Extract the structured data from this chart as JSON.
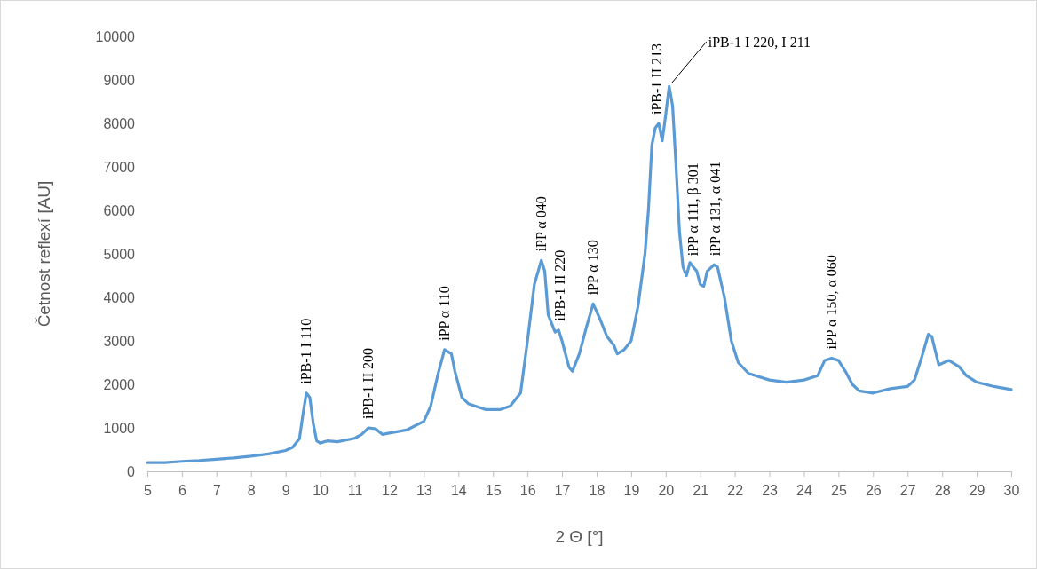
{
  "chart_data": {
    "type": "line",
    "xlabel": "2 Θ [°]",
    "ylabel": "Četnost reflexí [AU]",
    "xlim": [
      5,
      30
    ],
    "xticks": [
      5,
      6,
      7,
      8,
      9,
      10,
      11,
      12,
      13,
      14,
      15,
      16,
      17,
      18,
      19,
      20,
      21,
      22,
      23,
      24,
      25,
      26,
      27,
      28,
      29,
      30
    ],
    "ylim": [
      0,
      10000
    ],
    "yticks": [
      0,
      1000,
      2000,
      3000,
      4000,
      5000,
      6000,
      7000,
      8000,
      9000,
      10000
    ],
    "grid": false,
    "marker": "none",
    "line_style": "solid",
    "series": [
      {
        "color": "#5b9bd5",
        "x": [
          5.0,
          5.5,
          6,
          6.5,
          7,
          7.5,
          8,
          8.5,
          9,
          9.2,
          9.4,
          9.5,
          9.6,
          9.7,
          9.8,
          9.9,
          10,
          10.2,
          10.5,
          11,
          11.2,
          11.4,
          11.6,
          11.8,
          12,
          12.5,
          13,
          13.2,
          13.4,
          13.6,
          13.8,
          13.9,
          14.1,
          14.3,
          14.8,
          15.2,
          15.5,
          15.8,
          16.0,
          16.2,
          16.4,
          16.5,
          16.6,
          16.8,
          16.9,
          17.0,
          17.2,
          17.3,
          17.5,
          17.7,
          17.9,
          18.1,
          18.3,
          18.5,
          18.6,
          18.8,
          19.0,
          19.2,
          19.4,
          19.5,
          19.6,
          19.7,
          19.8,
          19.9,
          20.0,
          20.1,
          20.2,
          20.3,
          20.4,
          20.5,
          20.6,
          20.7,
          20.8,
          20.9,
          21.0,
          21.1,
          21.2,
          21.4,
          21.5,
          21.7,
          21.9,
          22.1,
          22.4,
          23,
          23.5,
          24,
          24.4,
          24.6,
          24.8,
          25,
          25.2,
          25.4,
          25.6,
          26,
          26.5,
          27,
          27.2,
          27.4,
          27.6,
          27.7,
          27.9,
          28.2,
          28.5,
          28.7,
          29,
          29.5,
          30
        ],
        "values": [
          200,
          200,
          230,
          250,
          280,
          310,
          350,
          400,
          480,
          550,
          750,
          1300,
          1800,
          1700,
          1100,
          700,
          650,
          700,
          680,
          760,
          850,
          1000,
          980,
          850,
          880,
          950,
          1150,
          1500,
          2200,
          2800,
          2700,
          2300,
          1700,
          1550,
          1420,
          1420,
          1500,
          1800,
          3000,
          4300,
          4850,
          4600,
          3600,
          3200,
          3250,
          3000,
          2400,
          2300,
          2700,
          3300,
          3850,
          3500,
          3100,
          2900,
          2700,
          2800,
          3000,
          3800,
          5000,
          6000,
          7500,
          7900,
          8000,
          7600,
          8200,
          8850,
          8400,
          7000,
          5500,
          4700,
          4500,
          4800,
          4700,
          4600,
          4300,
          4250,
          4600,
          4750,
          4700,
          4000,
          3000,
          2500,
          2250,
          2100,
          2050,
          2100,
          2200,
          2550,
          2600,
          2550,
          2300,
          2000,
          1850,
          1800,
          1900,
          1950,
          2100,
          2600,
          3150,
          3100,
          2450,
          2550,
          2400,
          2200,
          2050,
          1950,
          1880
        ]
      }
    ],
    "annotations": [
      {
        "text": "iPB-1 I 110",
        "x": 9.6,
        "y": 1800
      },
      {
        "text": "iPB-1 II 200",
        "x": 11.4,
        "y": 1000
      },
      {
        "text": "iPP α 110",
        "x": 13.6,
        "y": 2800
      },
      {
        "text": "iPP α 040",
        "x": 16.4,
        "y": 4850
      },
      {
        "text": "iPB-1 II 220",
        "x": 16.95,
        "y": 3250
      },
      {
        "text": "iPP α 130",
        "x": 17.9,
        "y": 3850
      },
      {
        "text": "iPB-1 II 213",
        "x": 19.75,
        "y": 8000
      },
      {
        "text": "iPB-1 I 220, I 211",
        "x": 20.1,
        "y": 8850
      },
      {
        "text": "iPP α 111, β 301",
        "x": 20.8,
        "y": 4750
      },
      {
        "text": "iPP α 131, α 041",
        "x": 21.45,
        "y": 4750
      },
      {
        "text": "iPP α 150, α 060",
        "x": 24.8,
        "y": 2600
      }
    ]
  }
}
